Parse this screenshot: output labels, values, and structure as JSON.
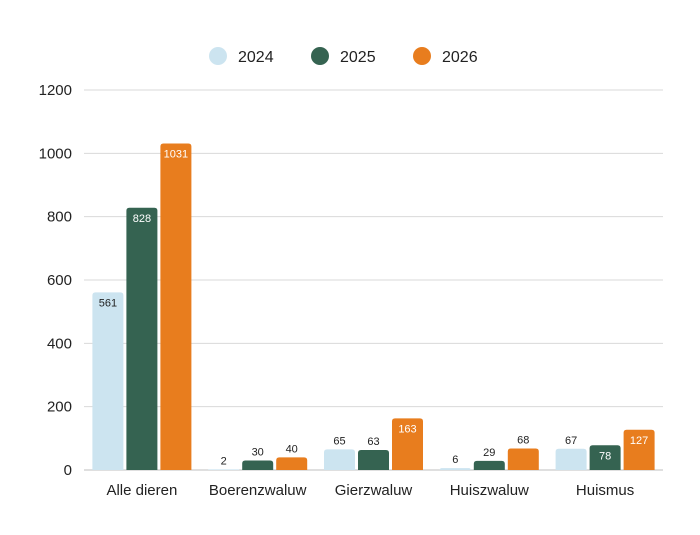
{
  "chart_data": {
    "type": "bar",
    "categories": [
      "Alle dieren",
      "Boerenzwaluw",
      "Gierzwaluw",
      "Huiszwaluw",
      "Huismus"
    ],
    "series": [
      {
        "name": "2024",
        "color": "#cce4f0",
        "values": [
          561,
          2,
          65,
          6,
          67
        ]
      },
      {
        "name": "2025",
        "color": "#356351",
        "values": [
          828,
          30,
          63,
          29,
          78
        ]
      },
      {
        "name": "2026",
        "color": "#e87d1e",
        "values": [
          1031,
          40,
          163,
          68,
          127
        ]
      }
    ],
    "title": "",
    "xlabel": "",
    "ylabel": "",
    "ylim": [
      0,
      1200
    ],
    "yticks": [
      0,
      200,
      400,
      600,
      800,
      1000,
      1200
    ],
    "grid": true,
    "legend_position": "top-center"
  }
}
